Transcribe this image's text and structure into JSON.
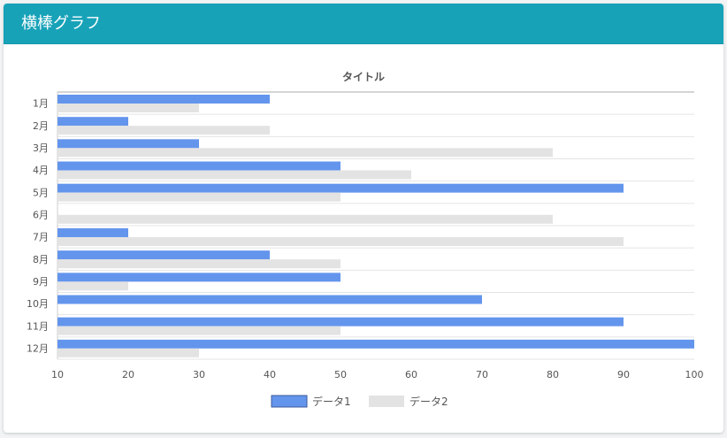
{
  "card": {
    "title": "横棒グラフ",
    "header_color": "#17a2b8"
  },
  "chart_data": {
    "type": "bar",
    "orientation": "horizontal",
    "title": "タイトル",
    "categories": [
      "1月",
      "2月",
      "3月",
      "4月",
      "5月",
      "6月",
      "7月",
      "8月",
      "9月",
      "10月",
      "11月",
      "12月"
    ],
    "series": [
      {
        "name": "データ1",
        "color": "#6495ed",
        "values": [
          40,
          20,
          30,
          50,
          90,
          null,
          20,
          40,
          50,
          70,
          90,
          100
        ]
      },
      {
        "name": "データ2",
        "color": "#e3e3e3",
        "values": [
          30,
          40,
          80,
          60,
          50,
          80,
          90,
          50,
          20,
          null,
          50,
          30
        ]
      }
    ],
    "xlim": [
      10,
      100
    ],
    "xticks": [
      "10",
      "20",
      "30",
      "40",
      "50",
      "60",
      "70",
      "80",
      "90",
      "100"
    ],
    "grid": true,
    "legend_position": "bottom"
  }
}
